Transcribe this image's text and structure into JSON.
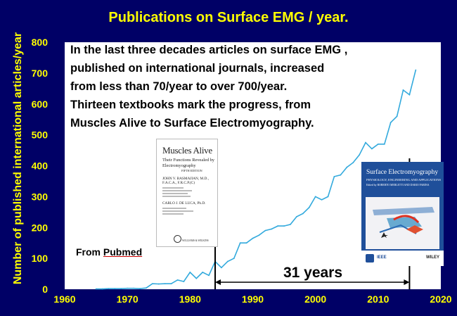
{
  "title": "Publications on Surface EMG / year.",
  "note_lines": [
    "In the last three decades articles on surface EMG ,",
    "published on international journals, increased",
    "from less than 70/year to over 700/year.",
    "Thirteen textbooks mark the progress, from",
    "Muscles Alive to Surface Electromyography."
  ],
  "source_prefix": "From ",
  "source_name": "Pubmed",
  "span_label": "31 years",
  "book1": {
    "title": "Muscles Alive",
    "subtitle": "Their Functions Revealed by Electromyography",
    "edition": "FIFTH EDITION",
    "author1": "JOHN V. BASMAJIAN, M.D., F.A.C.A., F.R.C.P.(C)",
    "author2": "CARLO J. DE LUCA, Ph.D.",
    "publisher": "WILLIAMS & WILKINS"
  },
  "book2": {
    "title": "Surface Electromyography",
    "subtitle": "PHYSIOLOGY, ENGINEERING AND APPLICATIONS",
    "edited_by": "Edited by",
    "editors": "ROBERTO MERLETTI AND DARIO FARINA",
    "publisher1": "IEEE",
    "publisher2": "WILEY"
  },
  "colors": {
    "background": "#000066",
    "plot_area": "#ffffff",
    "text_accent": "#ffff00",
    "line": "#33aadd"
  },
  "chart_data": {
    "type": "line",
    "title": "Publications on Surface EMG / year.",
    "xlabel": "",
    "ylabel": "Number of published international articles/year",
    "xlim": [
      1960,
      2020
    ],
    "ylim": [
      0,
      800
    ],
    "xticks": [
      1960,
      1970,
      1980,
      1990,
      2000,
      2010,
      2020
    ],
    "yticks": [
      0,
      100,
      200,
      300,
      400,
      500,
      600,
      700,
      800
    ],
    "grid": false,
    "series": [
      {
        "x": [
          1965,
          1966,
          1967,
          1968,
          1969,
          1970,
          1971,
          1972,
          1973,
          1974,
          1975,
          1976,
          1977,
          1978,
          1979,
          1980,
          1981,
          1982,
          1983,
          1984,
          1985,
          1986,
          1987,
          1988,
          1989,
          1990,
          1991,
          1992,
          1993,
          1994,
          1995,
          1996,
          1997,
          1998,
          1999,
          2000,
          2001,
          2002,
          2003,
          2004,
          2005,
          2006,
          2007,
          2008,
          2009,
          2010,
          2011,
          2012,
          2013,
          2014,
          2015,
          2016
        ],
        "y": [
          1,
          1,
          2,
          2,
          2,
          3,
          3,
          2,
          4,
          18,
          17,
          18,
          18,
          30,
          25,
          55,
          35,
          55,
          45,
          90,
          70,
          90,
          100,
          150,
          150,
          165,
          175,
          190,
          195,
          205,
          205,
          210,
          235,
          245,
          265,
          300,
          290,
          300,
          365,
          370,
          395,
          410,
          435,
          475,
          455,
          470,
          470,
          540,
          560,
          645,
          630,
          710
        ]
      }
    ],
    "markers": [
      {
        "year": 1984,
        "label": "Muscles Alive"
      },
      {
        "year": 2015,
        "label": "Surface Electromyography"
      }
    ]
  }
}
